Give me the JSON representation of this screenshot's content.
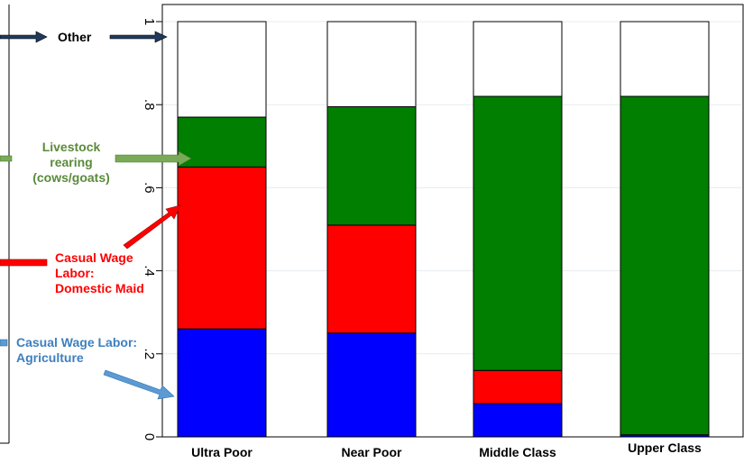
{
  "chart_data": {
    "type": "bar",
    "stacked": true,
    "categories": [
      "Ultra Poor",
      "Near Poor",
      "Middle Class",
      "Upper Class"
    ],
    "series": [
      {
        "key": "agri",
        "color": "#0000ff",
        "values": [
          0.26,
          0.25,
          0.08,
          0.005
        ]
      },
      {
        "key": "maid",
        "color": "#ff0000",
        "values": [
          0.39,
          0.26,
          0.08,
          0.0
        ]
      },
      {
        "key": "livestock",
        "color": "#007f00",
        "values": [
          0.12,
          0.285,
          0.66,
          0.815
        ]
      },
      {
        "key": "other",
        "color": "#ffffff",
        "values": [
          0.23,
          0.205,
          0.18,
          0.18
        ]
      }
    ],
    "ylim": [
      0,
      1.0
    ],
    "y_ticks": [
      {
        "value": 0,
        "label": "0"
      },
      {
        "value": 0.2,
        "label": ".2"
      },
      {
        "value": 0.4,
        "label": ".4"
      },
      {
        "value": 0.6,
        "label": ".6"
      },
      {
        "value": 0.8,
        "label": ".8"
      },
      {
        "value": 1.0,
        "label": "1"
      }
    ],
    "grid": true,
    "annotations": {
      "other": {
        "text": "Other",
        "color": "#000000"
      },
      "livestock": {
        "text": "Livestock rearing (cows/goats)",
        "color": "#5a8a3a"
      },
      "maid": {
        "text": "Casual Wage Labor: Domestic Maid",
        "color": "#ff0000"
      },
      "agri": {
        "text": "Casual Wage Labor: Agriculture",
        "color": "#3d7fbf"
      }
    }
  },
  "annotations": {
    "other": "Other",
    "livestock_l1": "Livestock",
    "livestock_l2": "rearing",
    "livestock_l3": "(cows/goats)",
    "maid_l1": "Casual Wage",
    "maid_l2": "Labor:",
    "maid_l3": "Domestic Maid",
    "agri_l1": "Casual Wage Labor:",
    "agri_l2": "Agriculture"
  }
}
